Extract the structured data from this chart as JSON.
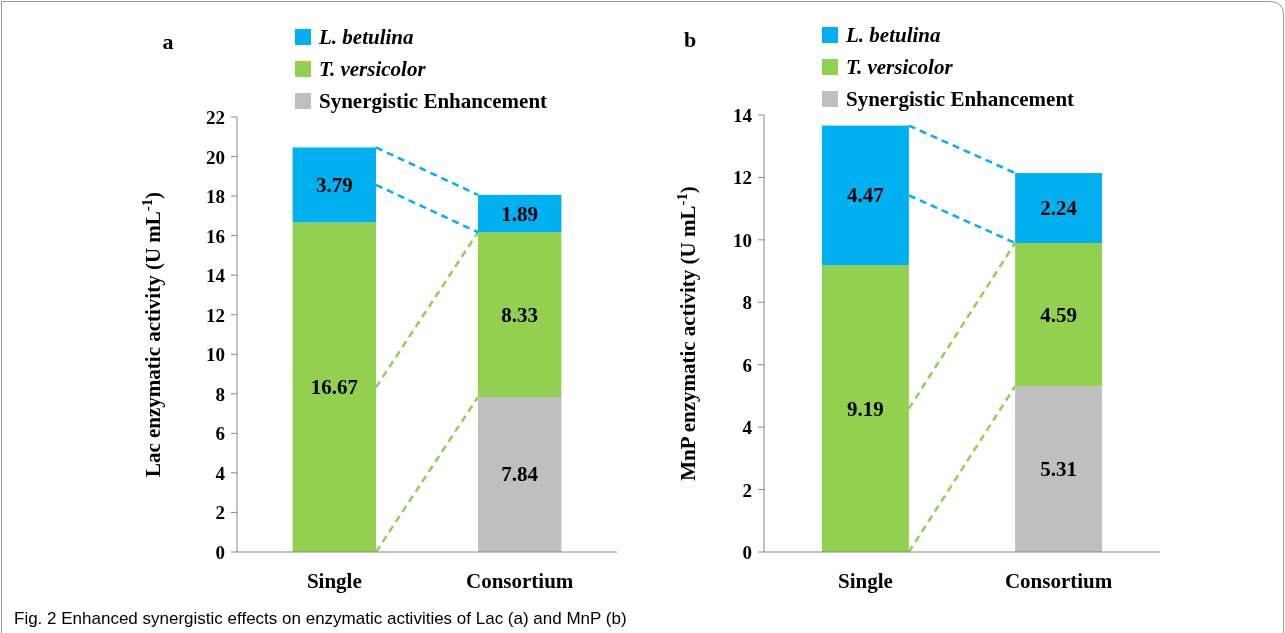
{
  "chart_data": [
    {
      "type": "bar",
      "title": "a",
      "stacked": true,
      "categories": [
        "Single",
        "Consortium"
      ],
      "ylabel": "Lac enzymatic activity (U mL$^{-1}$)",
      "ylim": [
        0,
        22
      ],
      "yticks": [
        0,
        2,
        4,
        6,
        8,
        10,
        12,
        14,
        16,
        18,
        20,
        22
      ],
      "legend": "top",
      "data_labels": true,
      "series": [
        {
          "name": "Synergistic Enhancement",
          "color": "#bfbfbf",
          "values": [
            null,
            7.84
          ]
        },
        {
          "name": "T. versicolor",
          "color": "#92d050",
          "values": [
            16.67,
            8.33
          ]
        },
        {
          "name": "L. betulina",
          "color": "#00b0f0",
          "values": [
            3.79,
            1.89
          ]
        }
      ],
      "annotations": [
        "Fig. 2  Enhanced synergistic effects on enzymatic activities of Lac (a) and MnP (b)"
      ]
    },
    {
      "type": "bar",
      "title": "b",
      "stacked": true,
      "categories": [
        "Single",
        "Consortium"
      ],
      "ylabel": "MnP enzymatic activity (U mL$^{-1}$)",
      "ylim": [
        0,
        14
      ],
      "yticks": [
        0,
        2,
        4,
        6,
        8,
        10,
        12,
        14
      ],
      "legend": "top",
      "data_labels": true,
      "series": [
        {
          "name": "Synergistic Enhancement",
          "color": "#bfbfbf",
          "values": [
            null,
            5.31
          ]
        },
        {
          "name": "T. versicolor",
          "color": "#92d050",
          "values": [
            9.19,
            4.59
          ]
        },
        {
          "name": "L. betulina",
          "color": "#00b0f0",
          "values": [
            4.47,
            2.24
          ]
        }
      ]
    }
  ]
}
